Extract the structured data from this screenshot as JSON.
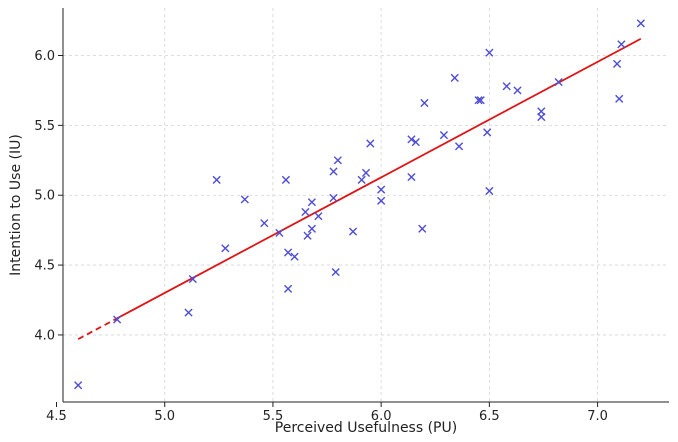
{
  "chart_data": {
    "type": "scatter",
    "title": "",
    "xlabel": "Perceived Usefulness (PU)",
    "ylabel": "Intention to Use (IU)",
    "xlim": [
      4.53,
      7.33
    ],
    "ylim": [
      3.52,
      6.34
    ],
    "xticks": [
      4.5,
      5.0,
      5.5,
      6.0,
      6.5,
      7.0
    ],
    "xtick_labels": [
      "4.5",
      "5.0",
      "5.5",
      "6.0",
      "6.5",
      "7.0"
    ],
    "yticks": [
      4.0,
      4.5,
      5.0,
      5.5,
      6.0
    ],
    "ytick_labels": [
      "4.0",
      "4.5",
      "5.0",
      "5.5",
      "6.0"
    ],
    "grid": true,
    "marker": "x",
    "colors": {
      "points": "#4d4dd6",
      "fit": "#e01414",
      "grid": "#d4d4d4",
      "axis": "#222222"
    },
    "series": [
      {
        "x": [
          4.6,
          4.78,
          5.11,
          5.13,
          5.24,
          5.28,
          5.37,
          5.46,
          5.53,
          5.56,
          5.57,
          5.57,
          5.6,
          5.65,
          5.66,
          5.68,
          5.68,
          5.71,
          5.78,
          5.78,
          5.79,
          5.8,
          5.87,
          5.91,
          5.93,
          5.95,
          6.0,
          6.0,
          6.14,
          6.14,
          6.16,
          6.19,
          6.2,
          6.29,
          6.34,
          6.36,
          6.45,
          6.46,
          6.49,
          6.5,
          6.5,
          6.58,
          6.63,
          6.74,
          6.74,
          6.82,
          7.09,
          7.1,
          7.11,
          7.2
        ],
        "y": [
          3.64,
          4.11,
          4.16,
          4.4,
          5.11,
          4.62,
          4.97,
          4.8,
          4.73,
          5.11,
          4.59,
          4.33,
          4.56,
          4.88,
          4.71,
          4.95,
          4.76,
          4.85,
          5.17,
          4.98,
          4.45,
          5.25,
          4.74,
          5.11,
          5.16,
          5.37,
          5.04,
          4.96,
          5.4,
          5.13,
          5.38,
          4.76,
          5.66,
          5.43,
          5.84,
          5.35,
          5.68,
          5.68,
          5.45,
          6.02,
          5.03,
          5.78,
          5.75,
          5.6,
          5.56,
          5.81,
          5.94,
          5.69,
          6.08,
          6.23
        ]
      }
    ],
    "fit_line": {
      "x": [
        4.6,
        7.2
      ],
      "y": [
        3.97,
        6.12
      ],
      "dashed_until_x": 4.78
    }
  }
}
